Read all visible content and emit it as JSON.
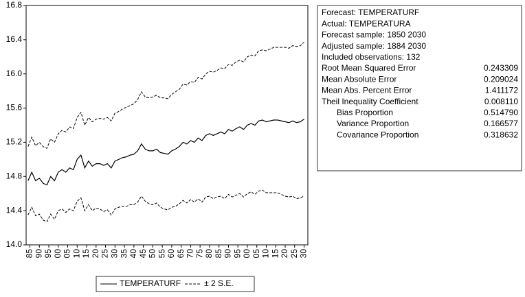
{
  "chart_data": {
    "type": "line",
    "x": [
      1884,
      1886,
      1888,
      1890,
      1892,
      1894,
      1896,
      1898,
      1900,
      1902,
      1904,
      1906,
      1908,
      1910,
      1912,
      1914,
      1916,
      1918,
      1920,
      1922,
      1924,
      1926,
      1928,
      1930,
      1932,
      1934,
      1936,
      1938,
      1940,
      1942,
      1944,
      1946,
      1948,
      1950,
      1952,
      1954,
      1956,
      1958,
      1960,
      1962,
      1964,
      1966,
      1968,
      1970,
      1972,
      1974,
      1976,
      1978,
      1980,
      1982,
      1984,
      1986,
      1988,
      1990,
      1992,
      1994,
      1996,
      1998,
      2000,
      2002,
      2004,
      2006,
      2008,
      2010,
      2012,
      2014,
      2016,
      2018,
      2020,
      2022,
      2024,
      2026,
      2028,
      2030
    ],
    "series": [
      {
        "name": "TEMPERATURF",
        "color": "#000000",
        "values": [
          14.75,
          14.85,
          14.75,
          14.78,
          14.72,
          14.7,
          14.8,
          14.75,
          14.85,
          14.88,
          14.85,
          14.9,
          14.88,
          15.0,
          15.05,
          14.9,
          14.98,
          14.92,
          14.95,
          14.95,
          14.93,
          14.95,
          14.9,
          14.98,
          15.0,
          15.02,
          15.03,
          15.05,
          15.06,
          15.1,
          15.18,
          15.12,
          15.1,
          15.1,
          15.12,
          15.08,
          15.07,
          15.06,
          15.1,
          15.12,
          15.15,
          15.2,
          15.18,
          15.22,
          15.2,
          15.25,
          15.22,
          15.28,
          15.3,
          15.28,
          15.3,
          15.32,
          15.3,
          15.35,
          15.33,
          15.36,
          15.38,
          15.35,
          15.4,
          15.42,
          15.4,
          15.45,
          15.46,
          15.44,
          15.45,
          15.46,
          15.46,
          15.45,
          15.44,
          15.43,
          15.45,
          15.43,
          15.44,
          15.47
        ]
      }
    ],
    "band": {
      "name": "± 2 S.E.",
      "color": "#000000",
      "upper": [
        15.15,
        15.26,
        15.16,
        15.2,
        15.15,
        15.13,
        15.24,
        15.2,
        15.3,
        15.34,
        15.32,
        15.38,
        15.36,
        15.49,
        15.55,
        15.4,
        15.49,
        15.44,
        15.47,
        15.48,
        15.47,
        15.49,
        15.45,
        15.54,
        15.56,
        15.59,
        15.61,
        15.63,
        15.65,
        15.7,
        15.79,
        15.73,
        15.72,
        15.73,
        15.75,
        15.72,
        15.72,
        15.71,
        15.76,
        15.79,
        15.82,
        15.88,
        15.87,
        15.91,
        15.9,
        15.96,
        15.94,
        16.0,
        16.03,
        16.02,
        16.04,
        16.07,
        16.06,
        16.11,
        16.1,
        16.14,
        16.16,
        16.14,
        16.2,
        16.22,
        16.21,
        16.27,
        16.28,
        16.27,
        16.29,
        16.31,
        16.31,
        16.31,
        16.31,
        16.3,
        16.33,
        16.32,
        16.33,
        16.37
      ],
      "lower": [
        14.35,
        14.44,
        14.34,
        14.36,
        14.29,
        14.27,
        14.36,
        14.3,
        14.4,
        14.42,
        14.38,
        14.42,
        14.4,
        14.51,
        14.55,
        14.4,
        14.47,
        14.4,
        14.43,
        14.42,
        14.39,
        14.41,
        14.35,
        14.42,
        14.44,
        14.45,
        14.45,
        14.47,
        14.47,
        14.5,
        14.57,
        14.51,
        14.48,
        14.47,
        14.49,
        14.44,
        14.42,
        14.41,
        14.44,
        14.45,
        14.48,
        14.52,
        14.49,
        14.53,
        14.5,
        14.54,
        14.5,
        14.56,
        14.57,
        14.54,
        14.56,
        14.57,
        14.54,
        14.59,
        14.56,
        14.58,
        14.6,
        14.56,
        14.6,
        14.62,
        14.59,
        14.63,
        14.64,
        14.61,
        14.61,
        14.61,
        14.61,
        14.59,
        14.57,
        14.56,
        14.57,
        14.54,
        14.55,
        14.57
      ]
    },
    "xlim": [
      1883,
      2032
    ],
    "xticks": [
      {
        "value": 1885,
        "label": "85"
      },
      {
        "value": 1890,
        "label": "90"
      },
      {
        "value": 1895,
        "label": "95"
      },
      {
        "value": 1900,
        "label": "00"
      },
      {
        "value": 1905,
        "label": "05"
      },
      {
        "value": 1910,
        "label": "10"
      },
      {
        "value": 1915,
        "label": "15"
      },
      {
        "value": 1920,
        "label": "20"
      },
      {
        "value": 1925,
        "label": "25"
      },
      {
        "value": 1930,
        "label": "30"
      },
      {
        "value": 1935,
        "label": "35"
      },
      {
        "value": 1940,
        "label": "40"
      },
      {
        "value": 1945,
        "label": "45"
      },
      {
        "value": 1950,
        "label": "50"
      },
      {
        "value": 1955,
        "label": "55"
      },
      {
        "value": 1960,
        "label": "60"
      },
      {
        "value": 1965,
        "label": "65"
      },
      {
        "value": 1970,
        "label": "70"
      },
      {
        "value": 1975,
        "label": "75"
      },
      {
        "value": 1980,
        "label": "80"
      },
      {
        "value": 1985,
        "label": "85"
      },
      {
        "value": 1990,
        "label": "90"
      },
      {
        "value": 1995,
        "label": "95"
      },
      {
        "value": 2000,
        "label": "00"
      },
      {
        "value": 2005,
        "label": "05"
      },
      {
        "value": 2010,
        "label": "10"
      },
      {
        "value": 2015,
        "label": "15"
      },
      {
        "value": 2020,
        "label": "20"
      },
      {
        "value": 2025,
        "label": "25"
      },
      {
        "value": 2030,
        "label": "30"
      }
    ],
    "ylim": [
      14.0,
      16.8
    ],
    "yticks": [
      {
        "value": 14.0,
        "label": "14.0"
      },
      14.4,
      14.8,
      {
        "value": 15.2,
        "label": "15.2"
      },
      15.6,
      {
        "value": 16.0,
        "label": "16.0"
      },
      16.4,
      16.8
    ]
  },
  "stats": {
    "lines": [
      "Forecast: TEMPERATURF",
      "Actual: TEMPERATURA",
      "Forecast sample: 1850 2030",
      "Adjusted sample: 1884 2030",
      "Included observations: 132"
    ],
    "measures": [
      {
        "label": "Root Mean Squared Error",
        "value": "0.243309"
      },
      {
        "label": "Mean Absolute Error",
        "value": "0.209024"
      },
      {
        "label": "Mean Abs. Percent Error",
        "value": "1.411172"
      },
      {
        "label": "Theil Inequality Coefficient",
        "value": "0.008110"
      }
    ],
    "theil_components": [
      {
        "label": "Bias Proportion",
        "value": "0.514790"
      },
      {
        "label": "Variance Proportion",
        "value": "0.166577"
      },
      {
        "label": "Covariance Proportion",
        "value": "0.318632"
      }
    ]
  }
}
